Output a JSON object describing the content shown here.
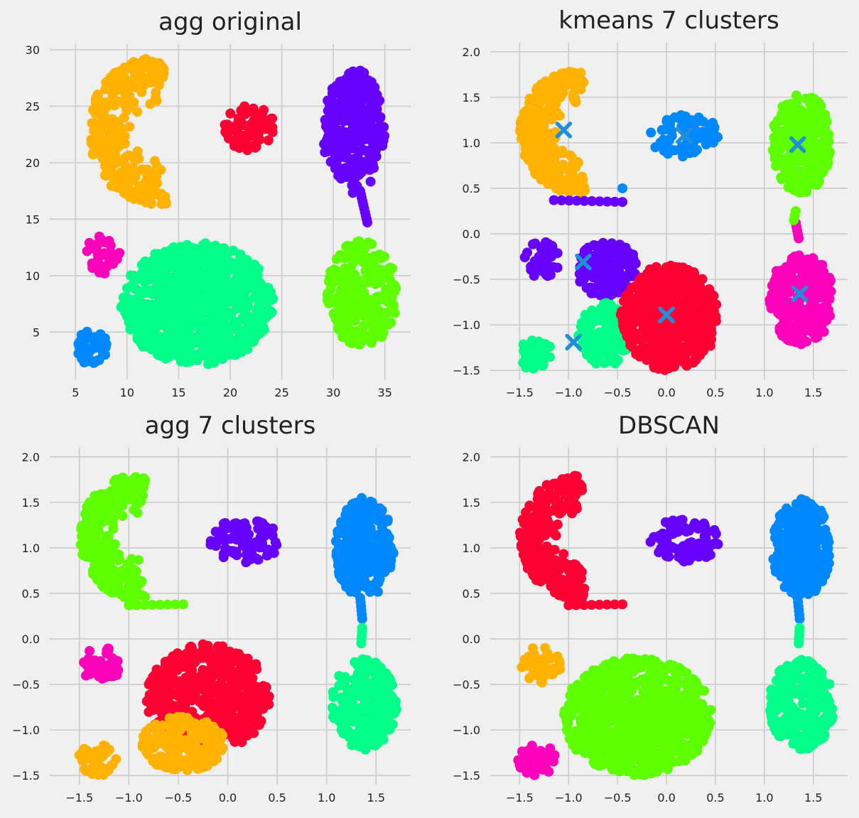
{
  "figure": {
    "background": "#f0f0f0",
    "panel_bg": "#f0f0f0",
    "grid_color": "#cbcbcb"
  },
  "chart_data": [
    {
      "type": "scatter",
      "title": "agg original",
      "grid": true,
      "xlim": [
        2.5,
        37.5
      ],
      "ylim": [
        0.8,
        30.5
      ],
      "xticks": [
        5,
        10,
        15,
        20,
        25,
        30,
        35
      ],
      "yticks": [
        5,
        10,
        15,
        20,
        25,
        30
      ],
      "tick_labels_x": [
        "5",
        "10",
        "15",
        "20",
        "25",
        "30",
        "35"
      ],
      "tick_labels_y": [
        "5",
        "10",
        "15",
        "20",
        "25",
        "30"
      ],
      "clusters": [
        {
          "color": "#ffb300",
          "shape": "moon_left",
          "cx": 10.5,
          "cy": 22.8,
          "rx": 6.5,
          "ry": 6.5,
          "n": 300
        },
        {
          "color": "#ff0033",
          "shape": "blob",
          "cx": 21.8,
          "cy": 23.1,
          "rx": 2.5,
          "ry": 2.0,
          "n": 80
        },
        {
          "color": "#6600ff",
          "shape": "blob",
          "cx": 32.0,
          "cy": 22.8,
          "rx": 3.0,
          "ry": 5.5,
          "n": 270
        },
        {
          "color": "#6600ff",
          "shape": "bridge",
          "x0": 32.6,
          "y0": 17.5,
          "x1": 33.3,
          "y1": 14.7,
          "n": 10
        },
        {
          "color": "#ff00bb",
          "shape": "blob",
          "cx": 7.6,
          "cy": 11.8,
          "rx": 1.7,
          "ry": 1.7,
          "n": 45
        },
        {
          "color": "#00ff88",
          "shape": "blob",
          "cx": 16.8,
          "cy": 7.5,
          "rx": 7.4,
          "ry": 5.4,
          "n": 790
        },
        {
          "color": "#5eff00",
          "shape": "blob",
          "cx": 32.8,
          "cy": 8.4,
          "rx": 3.4,
          "ry": 4.7,
          "n": 270
        },
        {
          "color": "#0088ff",
          "shape": "blob",
          "cx": 6.6,
          "cy": 3.6,
          "rx": 1.6,
          "ry": 1.5,
          "n": 45
        }
      ],
      "markers": []
    },
    {
      "type": "scatter",
      "title": "kmeans 7 clusters",
      "grid": true,
      "xlim": [
        -1.8,
        1.85
      ],
      "ylim": [
        -1.6,
        2.1
      ],
      "xticks": [
        -1.5,
        -1.0,
        -0.5,
        0.0,
        0.5,
        1.0,
        1.5
      ],
      "yticks": [
        -1.5,
        -1.0,
        -0.5,
        0.0,
        0.5,
        1.0,
        1.5,
        2.0
      ],
      "tick_labels_x": [
        "−1.5",
        "−1.0",
        "−0.5",
        "0.0",
        "0.5",
        "1.0",
        "1.5"
      ],
      "tick_labels_y": [
        "−1.5",
        "−1.0",
        "−0.5",
        "0.0",
        "0.5",
        "1.0",
        "1.5",
        "2.0"
      ],
      "clusters": [
        {
          "color": "#ffb300",
          "shape": "moon_left",
          "cx": -1.12,
          "cy": 1.12,
          "rx": 0.58,
          "ry": 0.68,
          "n": 300
        },
        {
          "color": "#6600ff",
          "shape": "line",
          "x0": -1.15,
          "y0": 0.37,
          "x1": -0.45,
          "y1": 0.35,
          "n": 10
        },
        {
          "color": "#0088ff",
          "shape": "blob",
          "cx": 0.18,
          "cy": 1.08,
          "rx": 0.36,
          "ry": 0.24,
          "n": 80
        },
        {
          "color": "#5eff00",
          "shape": "blob",
          "cx": 1.38,
          "cy": 1.0,
          "rx": 0.3,
          "ry": 0.55,
          "n": 270
        },
        {
          "color": "#6600ff",
          "shape": "blob",
          "cx": -1.28,
          "cy": -0.28,
          "rx": 0.2,
          "ry": 0.2,
          "n": 45
        },
        {
          "color": "#6600ff",
          "shape": "blob",
          "cx": -0.6,
          "cy": -0.4,
          "rx": 0.32,
          "ry": 0.32,
          "n": 150
        },
        {
          "color": "#00ff88",
          "shape": "blob",
          "cx": -0.62,
          "cy": -1.1,
          "rx": 0.28,
          "ry": 0.35,
          "n": 150
        },
        {
          "color": "#ff0033",
          "shape": "blob",
          "cx": 0.03,
          "cy": -0.92,
          "rx": 0.5,
          "ry": 0.58,
          "n": 500
        },
        {
          "color": "#00ff88",
          "shape": "blob",
          "cx": -1.32,
          "cy": -1.33,
          "rx": 0.2,
          "ry": 0.17,
          "n": 45
        },
        {
          "color": "#ff00bb",
          "shape": "blob",
          "cx": 1.38,
          "cy": -0.72,
          "rx": 0.33,
          "ry": 0.5,
          "n": 270
        },
        {
          "color": "#ff00bb",
          "shape": "bridge",
          "x0": 1.35,
          "y0": -0.05,
          "x1": 1.32,
          "y1": 0.12,
          "n": 5
        },
        {
          "color": "#5eff00",
          "shape": "bridge",
          "x0": 1.32,
          "y0": 0.25,
          "x1": 1.3,
          "y1": 0.15,
          "n": 3
        },
        {
          "color": "#0088ff",
          "shape": "line",
          "x0": -0.45,
          "y0": 0.5,
          "x1": -0.45,
          "y1": 0.5,
          "n": 1
        }
      ],
      "markers": [
        {
          "x": -1.05,
          "y": 1.14,
          "color": "#1f8fd8"
        },
        {
          "x": 0.18,
          "y": 1.08,
          "color": "#1f8fd8"
        },
        {
          "x": 1.34,
          "y": 0.98,
          "color": "#1f8fd8"
        },
        {
          "x": -0.85,
          "y": -0.31,
          "color": "#1f8fd8"
        },
        {
          "x": 0.0,
          "y": -0.89,
          "color": "#1f8fd8"
        },
        {
          "x": 1.36,
          "y": -0.66,
          "color": "#1f8fd8"
        },
        {
          "x": -0.95,
          "y": -1.19,
          "color": "#1f8fd8"
        }
      ]
    },
    {
      "type": "scatter",
      "title": "agg 7 clusters",
      "grid": true,
      "xlim": [
        -1.8,
        1.85
      ],
      "ylim": [
        -1.6,
        2.1
      ],
      "xticks": [
        -1.5,
        -1.0,
        -0.5,
        0.0,
        0.5,
        1.0,
        1.5
      ],
      "yticks": [
        -1.5,
        -1.0,
        -0.5,
        0.0,
        0.5,
        1.0,
        1.5,
        2.0
      ],
      "tick_labels_x": [
        "−1.5",
        "−1.0",
        "−0.5",
        "0.0",
        "0.5",
        "1.0",
        "1.5"
      ],
      "tick_labels_y": [
        "−1.5",
        "−1.0",
        "−0.5",
        "0.0",
        "0.5",
        "1.0",
        "1.5",
        "2.0"
      ],
      "clusters": [
        {
          "color": "#5eff00",
          "shape": "moon_left",
          "cx": -1.12,
          "cy": 1.12,
          "rx": 0.58,
          "ry": 0.68,
          "n": 300
        },
        {
          "color": "#5eff00",
          "shape": "line",
          "x0": -1.0,
          "y0": 0.37,
          "x1": -0.45,
          "y1": 0.38,
          "n": 8
        },
        {
          "color": "#6600ff",
          "shape": "blob",
          "cx": 0.18,
          "cy": 1.08,
          "rx": 0.36,
          "ry": 0.24,
          "n": 80
        },
        {
          "color": "#0088ff",
          "shape": "blob",
          "cx": 1.38,
          "cy": 1.0,
          "rx": 0.3,
          "ry": 0.55,
          "n": 270
        },
        {
          "color": "#0088ff",
          "shape": "bridge",
          "x0": 1.34,
          "y0": 0.45,
          "x1": 1.36,
          "y1": 0.22,
          "n": 6
        },
        {
          "color": "#ff00bb",
          "shape": "blob",
          "cx": -1.28,
          "cy": -0.28,
          "rx": 0.2,
          "ry": 0.2,
          "n": 45
        },
        {
          "color": "#ff0033",
          "shape": "blob",
          "cx": -0.2,
          "cy": -0.65,
          "rx": 0.62,
          "ry": 0.6,
          "n": 500
        },
        {
          "color": "#ffb300",
          "shape": "blob",
          "cx": -0.45,
          "cy": -1.15,
          "rx": 0.42,
          "ry": 0.3,
          "n": 200
        },
        {
          "color": "#ffb300",
          "shape": "blob",
          "cx": -1.32,
          "cy": -1.33,
          "rx": 0.2,
          "ry": 0.17,
          "n": 45
        },
        {
          "color": "#00ff88",
          "shape": "blob",
          "cx": 1.38,
          "cy": -0.72,
          "rx": 0.33,
          "ry": 0.5,
          "n": 270
        },
        {
          "color": "#00ff88",
          "shape": "bridge",
          "x0": 1.36,
          "y0": 0.12,
          "x1": 1.35,
          "y1": -0.05,
          "n": 5
        }
      ],
      "markers": []
    },
    {
      "type": "scatter",
      "title": "DBSCAN",
      "grid": true,
      "xlim": [
        -1.8,
        1.85
      ],
      "ylim": [
        -1.6,
        2.1
      ],
      "xticks": [
        -1.5,
        -1.0,
        -0.5,
        0.0,
        0.5,
        1.0,
        1.5
      ],
      "yticks": [
        -1.5,
        -1.0,
        -0.5,
        0.0,
        0.5,
        1.0,
        1.5,
        2.0
      ],
      "tick_labels_x": [
        "−1.5",
        "−1.0",
        "−0.5",
        "0.0",
        "0.5",
        "1.0",
        "1.5"
      ],
      "tick_labels_y": [
        "−1.5",
        "−1.0",
        "−0.5",
        "0.0",
        "0.5",
        "1.0",
        "1.5",
        "2.0"
      ],
      "clusters": [
        {
          "color": "#ff0033",
          "shape": "moon_left",
          "cx": -1.12,
          "cy": 1.12,
          "rx": 0.58,
          "ry": 0.68,
          "n": 300
        },
        {
          "color": "#ff0033",
          "shape": "line",
          "x0": -1.0,
          "y0": 0.37,
          "x1": -0.45,
          "y1": 0.38,
          "n": 8
        },
        {
          "color": "#6600ff",
          "shape": "blob",
          "cx": 0.18,
          "cy": 1.08,
          "rx": 0.36,
          "ry": 0.24,
          "n": 80
        },
        {
          "color": "#0088ff",
          "shape": "blob",
          "cx": 1.38,
          "cy": 1.0,
          "rx": 0.3,
          "ry": 0.55,
          "n": 270
        },
        {
          "color": "#0088ff",
          "shape": "bridge",
          "x0": 1.34,
          "y0": 0.45,
          "x1": 1.36,
          "y1": 0.22,
          "n": 6
        },
        {
          "color": "#ffb300",
          "shape": "blob",
          "cx": -1.28,
          "cy": -0.28,
          "rx": 0.2,
          "ry": 0.2,
          "n": 45
        },
        {
          "color": "#5eff00",
          "shape": "blob",
          "cx": -0.3,
          "cy": -0.85,
          "rx": 0.76,
          "ry": 0.65,
          "n": 790
        },
        {
          "color": "#ff00bb",
          "shape": "blob",
          "cx": -1.32,
          "cy": -1.33,
          "rx": 0.2,
          "ry": 0.17,
          "n": 45
        },
        {
          "color": "#00ff88",
          "shape": "blob",
          "cx": 1.38,
          "cy": -0.72,
          "rx": 0.33,
          "ry": 0.5,
          "n": 270
        },
        {
          "color": "#00ff88",
          "shape": "bridge",
          "x0": 1.36,
          "y0": 0.12,
          "x1": 1.35,
          "y1": -0.05,
          "n": 5
        }
      ],
      "markers": []
    }
  ]
}
